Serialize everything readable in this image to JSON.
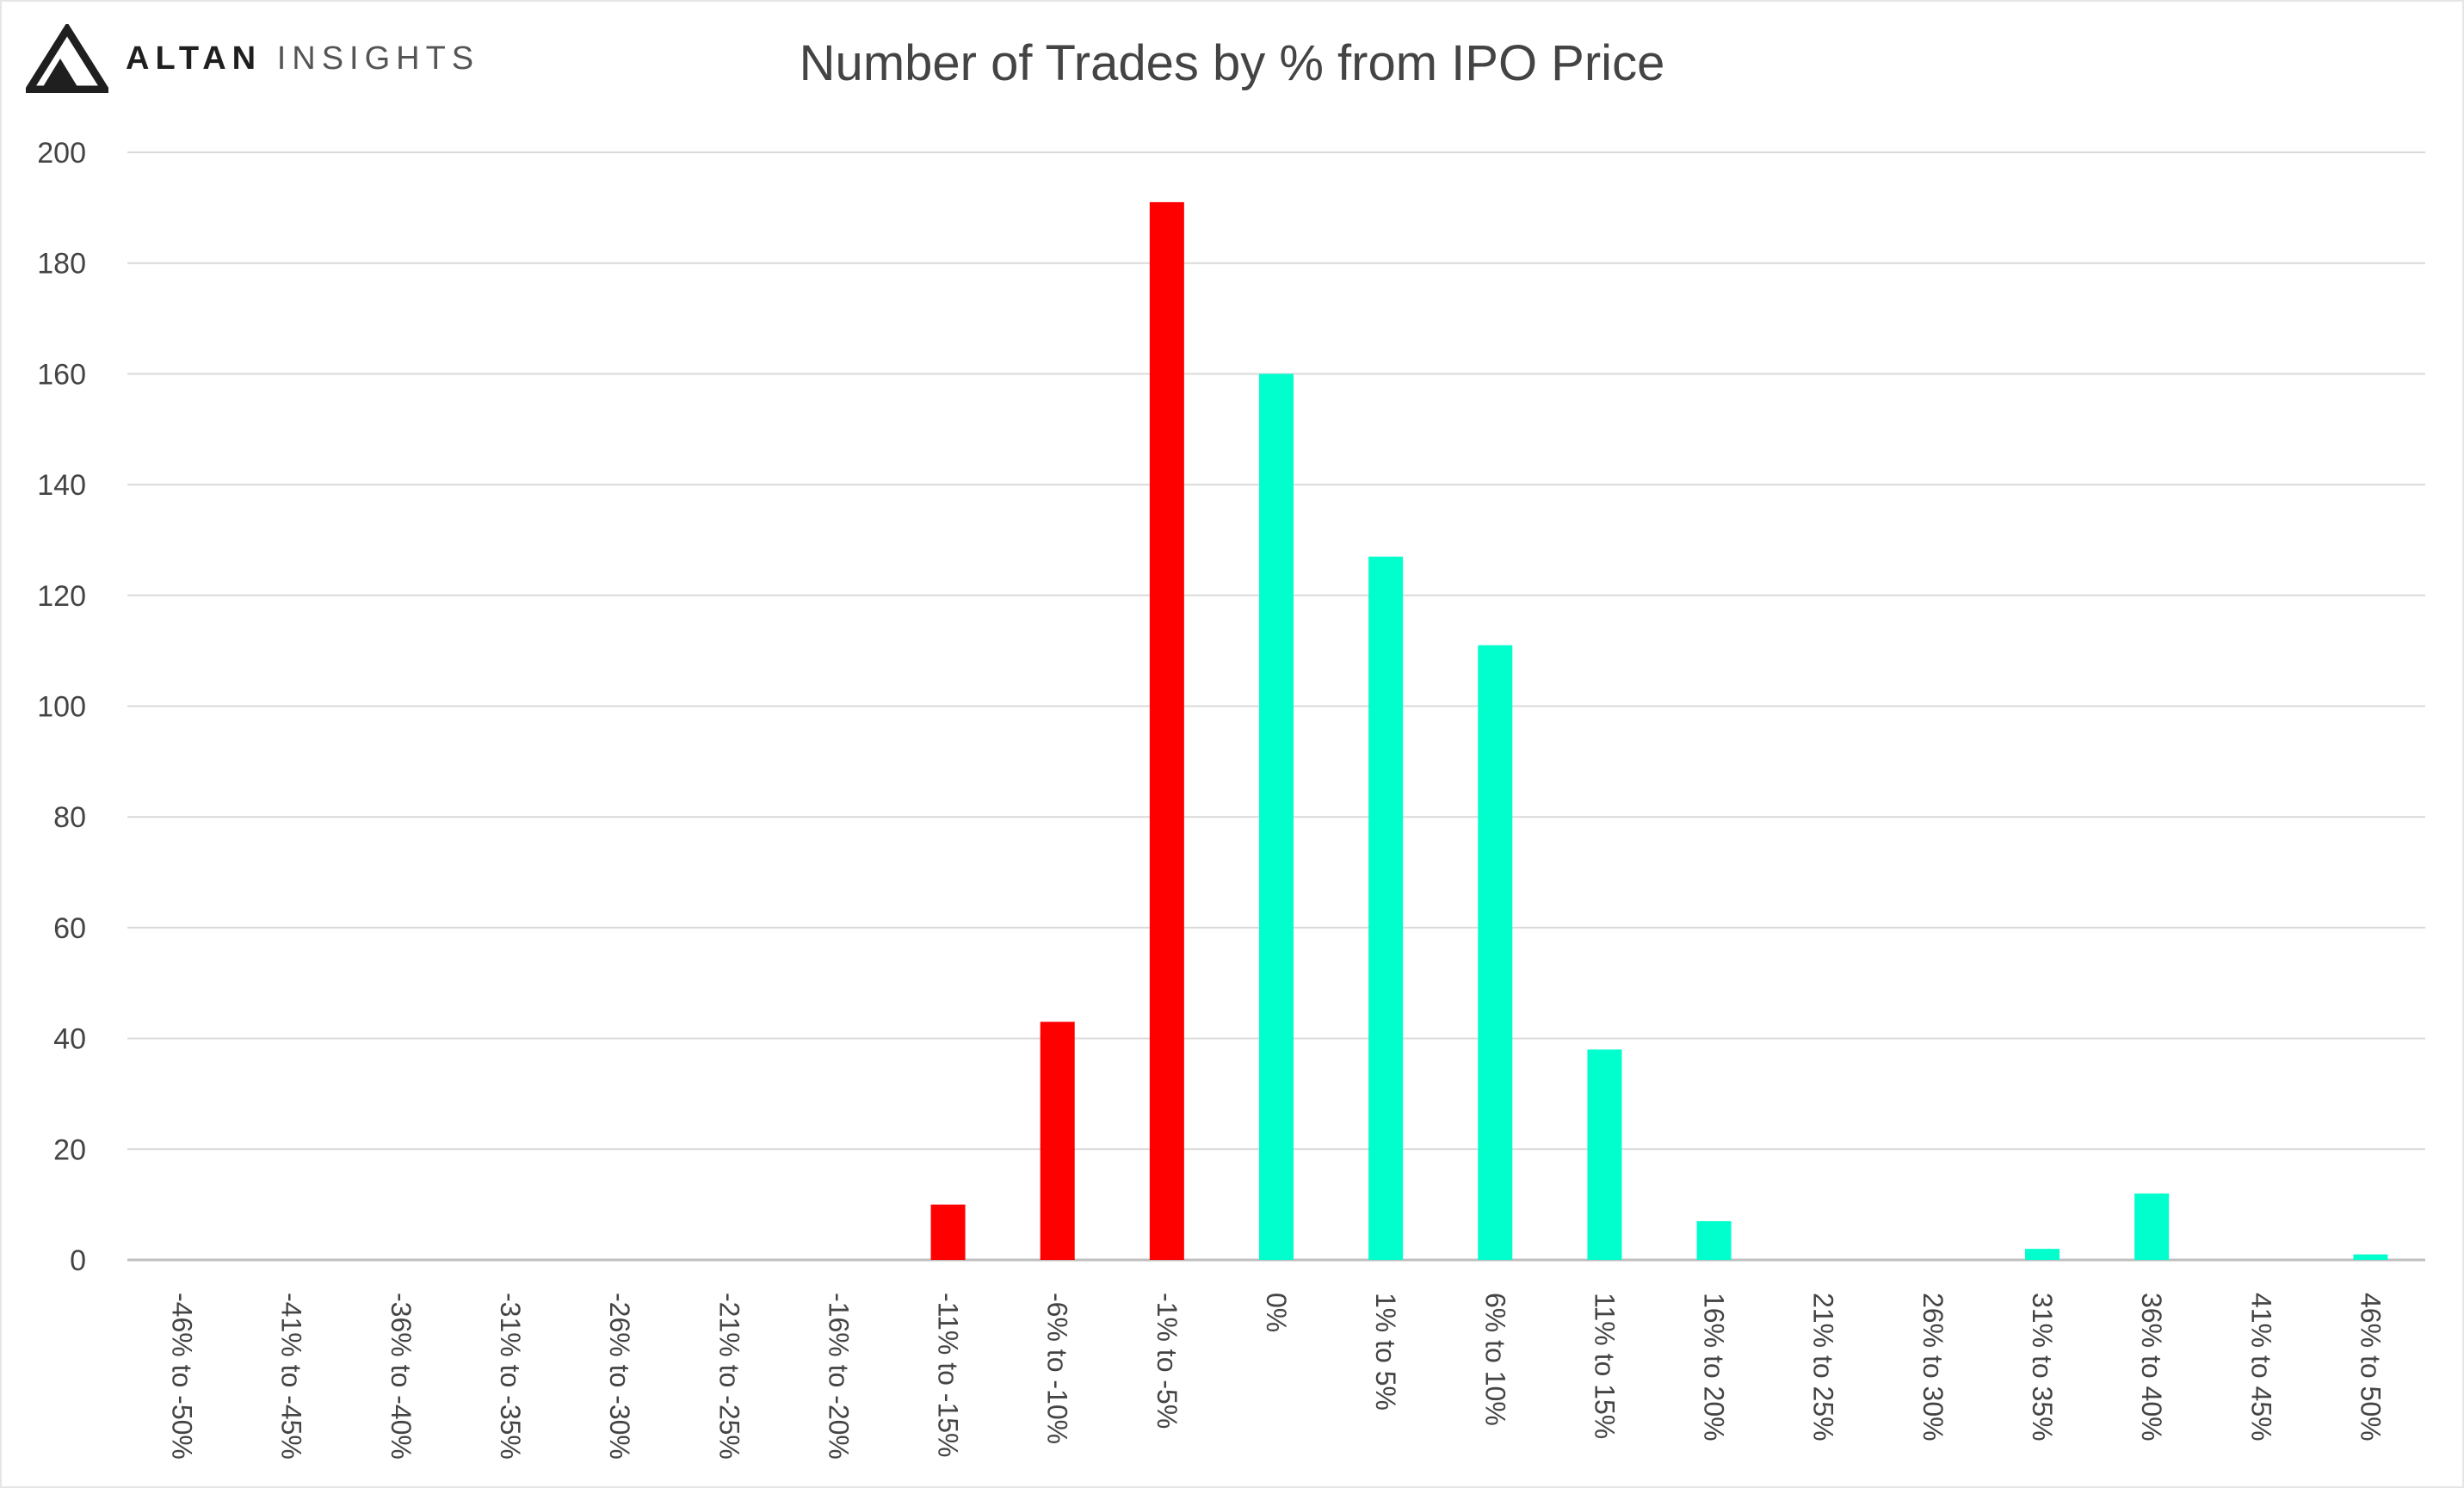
{
  "brand": {
    "name_strong": "ALTAN",
    "name_light": "INSIGHTS",
    "logo_icon": "triangle-peak-icon"
  },
  "chart_data": {
    "type": "bar",
    "title": "Number of Trades by % from IPO Price",
    "xlabel": "",
    "ylabel": "",
    "ylim": [
      0,
      200
    ],
    "yticks": [
      0,
      20,
      40,
      60,
      80,
      100,
      120,
      140,
      160,
      180,
      200
    ],
    "grid": true,
    "legend": "none",
    "categories": [
      "-46% to -50%",
      "-41% to -45%",
      "-36% to -40%",
      "-31% to -35%",
      "-26% to -30%",
      "-21% to -25%",
      "-16% to -20%",
      "-11% to -15%",
      "-6% to -10%",
      "-1% to -5%",
      "0%",
      "1% to 5%",
      "6% to 10%",
      "11% to 15%",
      "16% to 20%",
      "21% to 25%",
      "26% to 30%",
      "31% to 35%",
      "36% to 40%",
      "41% to 45%",
      "46% to 50%"
    ],
    "values": [
      0,
      0,
      0,
      0,
      0,
      0,
      0,
      10,
      43,
      191,
      160,
      127,
      111,
      38,
      7,
      0,
      0,
      2,
      12,
      0,
      1
    ],
    "colors": {
      "negative": "#ff0000",
      "positive": "#00ffcc",
      "grid": "#d9d9d9",
      "axis": "#bfbfbf"
    }
  }
}
